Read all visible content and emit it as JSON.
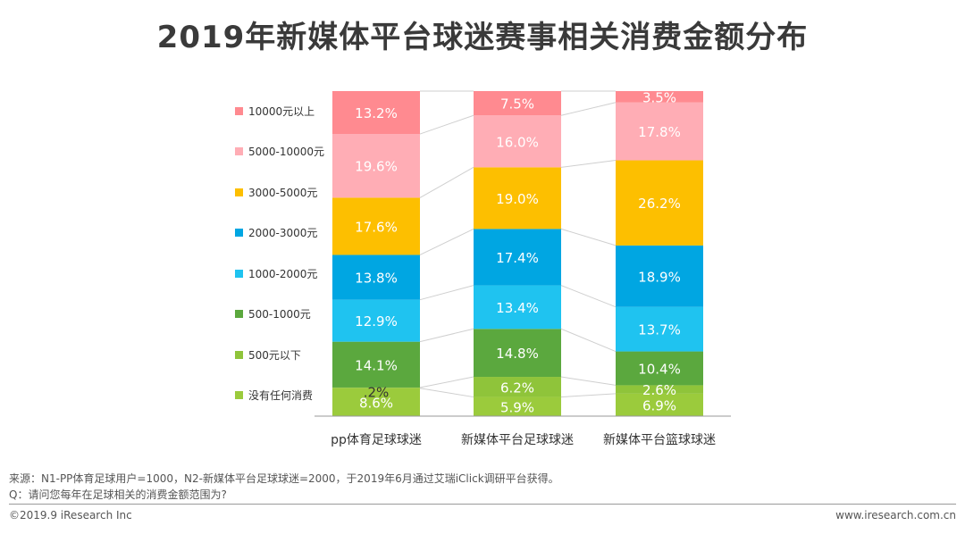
{
  "title": "2019年新媒体平台球迷赛事相关消费金额分布",
  "chart_data": {
    "type": "bar",
    "stacked": true,
    "categories": [
      "pp体育足球球迷",
      "新媒体平台足球球迷",
      "新媒体平台篮球球迷"
    ],
    "series": [
      {
        "name": "没有任何消费",
        "color": "#9bcb3c",
        "values": [
          8.6,
          5.9,
          6.9
        ],
        "labels": [
          "8.6%",
          "5.9%",
          "6.9%"
        ]
      },
      {
        "name": "500元以下",
        "color": "#8fc43a",
        "values": [
          0.2,
          6.2,
          2.6
        ],
        "labels": [
          ".2%",
          "6.2%",
          "2.6%"
        ]
      },
      {
        "name": "500-1000元",
        "color": "#5ba83e",
        "values": [
          14.1,
          14.8,
          10.4
        ],
        "labels": [
          "14.1%",
          "14.8%",
          "10.4%"
        ]
      },
      {
        "name": "1000-2000元",
        "color": "#1fc3f0",
        "values": [
          12.9,
          13.4,
          13.7
        ],
        "labels": [
          "12.9%",
          "13.4%",
          "13.7%"
        ]
      },
      {
        "name": "2000-3000元",
        "color": "#00a6e2",
        "values": [
          13.8,
          17.4,
          18.9
        ],
        "labels": [
          "13.8%",
          "17.4%",
          "18.9%"
        ]
      },
      {
        "name": "3000-5000元",
        "color": "#fdbf00",
        "values": [
          17.6,
          19.0,
          26.2
        ],
        "labels": [
          "17.6%",
          "19.0%",
          "26.2%"
        ]
      },
      {
        "name": "5000-10000元",
        "color": "#ffadb5",
        "values": [
          19.6,
          16.0,
          17.8
        ],
        "labels": [
          "19.6%",
          "16.0%",
          "17.8%"
        ]
      },
      {
        "name": "10000元以上",
        "color": "#ff8a90",
        "values": [
          13.2,
          7.5,
          3.5
        ],
        "labels": [
          "13.2%",
          "7.5%",
          "3.5%"
        ]
      }
    ],
    "ylim": [
      0,
      100
    ]
  },
  "legend": [
    {
      "label": "10000元以上",
      "color": "#ff8a90"
    },
    {
      "label": "5000-10000元",
      "color": "#ffadb5"
    },
    {
      "label": "3000-5000元",
      "color": "#fdbf00"
    },
    {
      "label": "2000-3000元",
      "color": "#00a6e2"
    },
    {
      "label": "1000-2000元",
      "color": "#1fc3f0"
    },
    {
      "label": "500-1000元",
      "color": "#5ba83e"
    },
    {
      "label": "500元以下",
      "color": "#8fc43a"
    },
    {
      "label": "没有任何消费",
      "color": "#9bcb3c"
    }
  ],
  "footer": {
    "source": "来源：N1-PP体育足球用户=1000，N2-新媒体平台足球球迷=2000，于2019年6月通过艾瑞iClick调研平台获得。",
    "question": "Q：请问您每年在足球相关的消费金额范围为?",
    "copyright": "©2019.9 iResearch Inc",
    "website": "www.iresearch.com.cn"
  }
}
